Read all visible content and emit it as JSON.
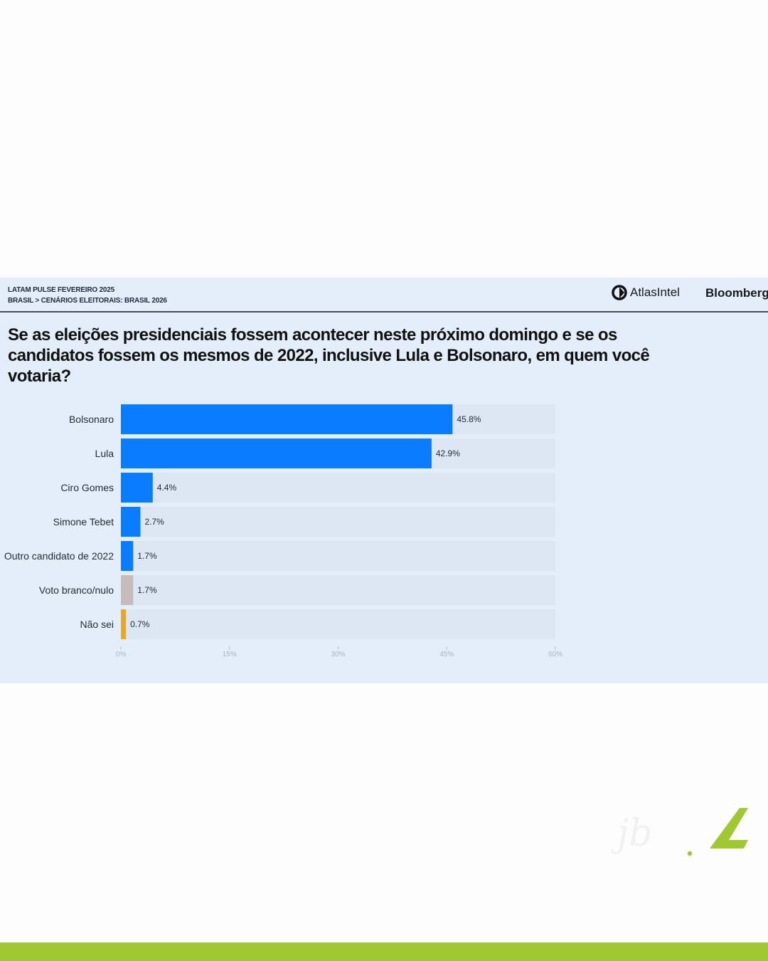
{
  "header": {
    "line1": "LATAM PULSE FEVEREIRO 2025",
    "line2": "BRASIL > CENÁRIOS ELEITORAIS: BRASIL 2026"
  },
  "brands": {
    "atlas": "AtlasIntel",
    "bloomberg": "Bloomberg"
  },
  "colors": {
    "panel": "#e4eefb",
    "accent_green": "#a0c832",
    "bar_blue": "#0a7cff",
    "bar_gray": "#c7bcbc",
    "bar_gold": "#e4a82a",
    "track": "#dde6f3"
  },
  "chart_data": {
    "type": "bar",
    "orientation": "horizontal",
    "title": "Se as eleições presidenciais fossem acontecer neste próximo domingo e se os candidatos fossem os mesmos de 2022, inclusive Lula e Bolsonaro, em quem você votaria?",
    "categories": [
      "Bolsonaro",
      "Lula",
      "Ciro Gomes",
      "Simone Tebet",
      "Outro candidato de 2022",
      "Voto branco/nulo",
      "Não sei"
    ],
    "values": [
      45.8,
      42.9,
      4.4,
      2.7,
      1.7,
      1.7,
      0.7
    ],
    "value_labels": [
      "45.8%",
      "42.9%",
      "4.4%",
      "2.7%",
      "1.7%",
      "1.7%",
      "0.7%"
    ],
    "bar_colors": [
      "#0a7cff",
      "#0a7cff",
      "#0a7cff",
      "#0a7cff",
      "#0a7cff",
      "#c7bcbc",
      "#e4a82a"
    ],
    "xlim": [
      0,
      60
    ],
    "xticks": [
      0,
      15,
      30,
      45,
      60
    ],
    "xtick_labels": [
      "0%",
      "15%",
      "30%",
      "45%",
      "60%"
    ],
    "grid": false,
    "legend": "none"
  }
}
